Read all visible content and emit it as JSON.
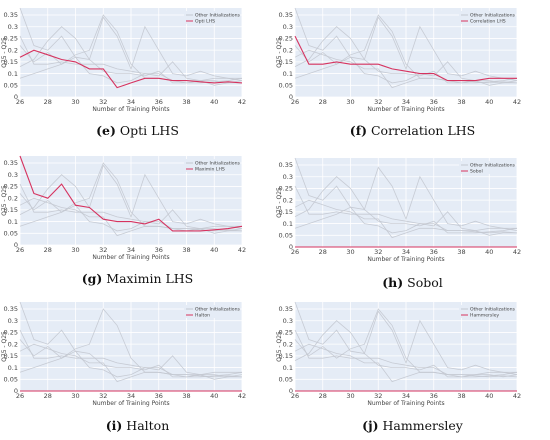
{
  "panels": [
    {
      "caption_letter": "(e)",
      "caption_text": "Opti LHS"
    },
    {
      "caption_letter": "(f)",
      "caption_text": "Correlation LHS"
    },
    {
      "caption_letter": "(g)",
      "caption_text": "Maximin LHS"
    },
    {
      "caption_letter": "(h)",
      "caption_text": "Sobol"
    },
    {
      "caption_letter": "(i)",
      "caption_text": "Halton"
    },
    {
      "caption_letter": "(j)",
      "caption_text": "Hammersley"
    }
  ],
  "colors": {
    "plot_bg": "#e5ecf6",
    "grid": "#ffffff",
    "other": "#c3c8d0",
    "highlight": "#d6335f"
  },
  "chart_data": [
    {
      "type": "line",
      "title": "",
      "xlabel": "Number of Training Points",
      "ylabel": "Q75 - Q25",
      "xlim": [
        26,
        42
      ],
      "ylim": [
        0,
        0.38
      ],
      "xticks": [
        26,
        28,
        30,
        32,
        34,
        36,
        38,
        40,
        42
      ],
      "yticks": [
        0,
        0.05,
        0.1,
        0.15,
        0.2,
        0.25,
        0.3,
        0.35
      ],
      "x": [
        26,
        27,
        28,
        29,
        30,
        31,
        32,
        33,
        34,
        35,
        36,
        37,
        38,
        39,
        40,
        41,
        42
      ],
      "legend": [
        "Other Initializations",
        "Opti LHS"
      ],
      "series": [
        {
          "name": "Opti LHS",
          "values": [
            0.17,
            0.2,
            0.18,
            0.16,
            0.15,
            0.12,
            0.12,
            0.04,
            0.06,
            0.08,
            0.08,
            0.07,
            0.07,
            0.065,
            0.06,
            0.065,
            0.06
          ]
        }
      ]
    },
    {
      "type": "line",
      "title": "",
      "xlabel": "Number of Training Points",
      "ylabel": "Q75 - Q25",
      "xlim": [
        26,
        42
      ],
      "ylim": [
        0,
        0.38
      ],
      "xticks": [
        26,
        28,
        30,
        32,
        34,
        36,
        38,
        40,
        42
      ],
      "yticks": [
        0,
        0.05,
        0.1,
        0.15,
        0.2,
        0.25,
        0.3,
        0.35
      ],
      "x": [
        26,
        27,
        28,
        29,
        30,
        31,
        32,
        33,
        34,
        35,
        36,
        37,
        38,
        39,
        40,
        41,
        42
      ],
      "legend": [
        "Other Initializations",
        "Correlation LHS"
      ],
      "series": [
        {
          "name": "Correlation LHS",
          "values": [
            0.26,
            0.14,
            0.14,
            0.15,
            0.14,
            0.14,
            0.14,
            0.12,
            0.11,
            0.1,
            0.1,
            0.07,
            0.07,
            0.07,
            0.08,
            0.08,
            0.08
          ]
        }
      ]
    },
    {
      "type": "line",
      "title": "",
      "xlabel": "Number of Training Points",
      "ylabel": "Q75 - Q25",
      "xlim": [
        26,
        42
      ],
      "ylim": [
        0,
        0.38
      ],
      "xticks": [
        26,
        28,
        30,
        32,
        34,
        36,
        38,
        40,
        42
      ],
      "yticks": [
        0,
        0.05,
        0.1,
        0.15,
        0.2,
        0.25,
        0.3,
        0.35
      ],
      "x": [
        26,
        27,
        28,
        29,
        30,
        31,
        32,
        33,
        34,
        35,
        36,
        37,
        38,
        39,
        40,
        41,
        42
      ],
      "legend": [
        "Other Initializations",
        "Maximin LHS"
      ],
      "series": [
        {
          "name": "Maximin LHS",
          "values": [
            0.38,
            0.22,
            0.2,
            0.26,
            0.17,
            0.16,
            0.11,
            0.1,
            0.1,
            0.09,
            0.11,
            0.06,
            0.06,
            0.06,
            0.065,
            0.07,
            0.08
          ]
        }
      ]
    },
    {
      "type": "line",
      "title": "",
      "xlabel": "Number of Training Points",
      "ylabel": "Q75 - Q25",
      "xlim": [
        26,
        42
      ],
      "ylim": [
        0,
        0.38
      ],
      "xticks": [
        26,
        28,
        30,
        32,
        34,
        36,
        38,
        40,
        42
      ],
      "yticks": [
        0,
        0.05,
        0.1,
        0.15,
        0.2,
        0.25,
        0.3,
        0.35
      ],
      "x": [
        26,
        27,
        28,
        29,
        30,
        31,
        32,
        33,
        34,
        35,
        36,
        37,
        38,
        39,
        40,
        41,
        42
      ],
      "legend": [
        "Other Initializations",
        "Sobol"
      ],
      "series": [
        {
          "name": "Sobol",
          "values": [
            0,
            0,
            0,
            0,
            0,
            0,
            0,
            0,
            0,
            0,
            0,
            0,
            0,
            0,
            0,
            0,
            0
          ]
        }
      ]
    },
    {
      "type": "line",
      "title": "",
      "xlabel": "Number of Training Points",
      "ylabel": "Q75 - Q25",
      "xlim": [
        26,
        42
      ],
      "ylim": [
        0,
        0.38
      ],
      "xticks": [
        26,
        28,
        30,
        32,
        34,
        36,
        38,
        40,
        42
      ],
      "yticks": [
        0,
        0.05,
        0.1,
        0.15,
        0.2,
        0.25,
        0.3,
        0.35
      ],
      "x": [
        26,
        27,
        28,
        29,
        30,
        31,
        32,
        33,
        34,
        35,
        36,
        37,
        38,
        39,
        40,
        41,
        42
      ],
      "legend": [
        "Other Initializations",
        "Halton"
      ],
      "series": [
        {
          "name": "Halton",
          "values": [
            0,
            0,
            0,
            0,
            0,
            0,
            0,
            0,
            0,
            0,
            0,
            0,
            0,
            0,
            0,
            0,
            0
          ]
        }
      ]
    },
    {
      "type": "line",
      "title": "",
      "xlabel": "Number of Training Points",
      "ylabel": "Q75 - Q25",
      "xlim": [
        26,
        42
      ],
      "ylim": [
        0,
        0.38
      ],
      "xticks": [
        26,
        28,
        30,
        32,
        34,
        36,
        38,
        40,
        42
      ],
      "yticks": [
        0,
        0.05,
        0.1,
        0.15,
        0.2,
        0.25,
        0.3,
        0.35
      ],
      "x": [
        26,
        27,
        28,
        29,
        30,
        31,
        32,
        33,
        34,
        35,
        36,
        37,
        38,
        39,
        40,
        41,
        42
      ],
      "legend": [
        "Other Initializations",
        "Hammersley"
      ],
      "series": [
        {
          "name": "Hammersley",
          "values": [
            0,
            0,
            0,
            0,
            0,
            0,
            0,
            0,
            0,
            0,
            0,
            0,
            0,
            0,
            0,
            0,
            0
          ]
        }
      ]
    }
  ],
  "other_initializations": [
    [
      0.17,
      0.2,
      0.18,
      0.16,
      0.15,
      0.12,
      0.12,
      0.04,
      0.06,
      0.08,
      0.08,
      0.07,
      0.07,
      0.065,
      0.06,
      0.065,
      0.06
    ],
    [
      0.26,
      0.14,
      0.14,
      0.15,
      0.14,
      0.14,
      0.14,
      0.12,
      0.11,
      0.1,
      0.1,
      0.07,
      0.07,
      0.07,
      0.08,
      0.08,
      0.08
    ],
    [
      0.38,
      0.22,
      0.2,
      0.26,
      0.17,
      0.16,
      0.11,
      0.1,
      0.1,
      0.09,
      0.11,
      0.06,
      0.06,
      0.06,
      0.065,
      0.07,
      0.08
    ],
    [
      0.22,
      0.15,
      0.19,
      0.14,
      0.18,
      0.2,
      0.35,
      0.28,
      0.14,
      0.08,
      0.08,
      0.07,
      0.06,
      0.07,
      0.07,
      0.06,
      0.07
    ],
    [
      0.13,
      0.16,
      0.24,
      0.3,
      0.25,
      0.16,
      0.34,
      0.26,
      0.12,
      0.3,
      0.2,
      0.1,
      0.09,
      0.11,
      0.09,
      0.08,
      0.07
    ],
    [
      0.08,
      0.1,
      0.12,
      0.14,
      0.17,
      0.1,
      0.09,
      0.06,
      0.07,
      0.1,
      0.09,
      0.15,
      0.08,
      0.07,
      0.05,
      0.06,
      0.06
    ]
  ]
}
